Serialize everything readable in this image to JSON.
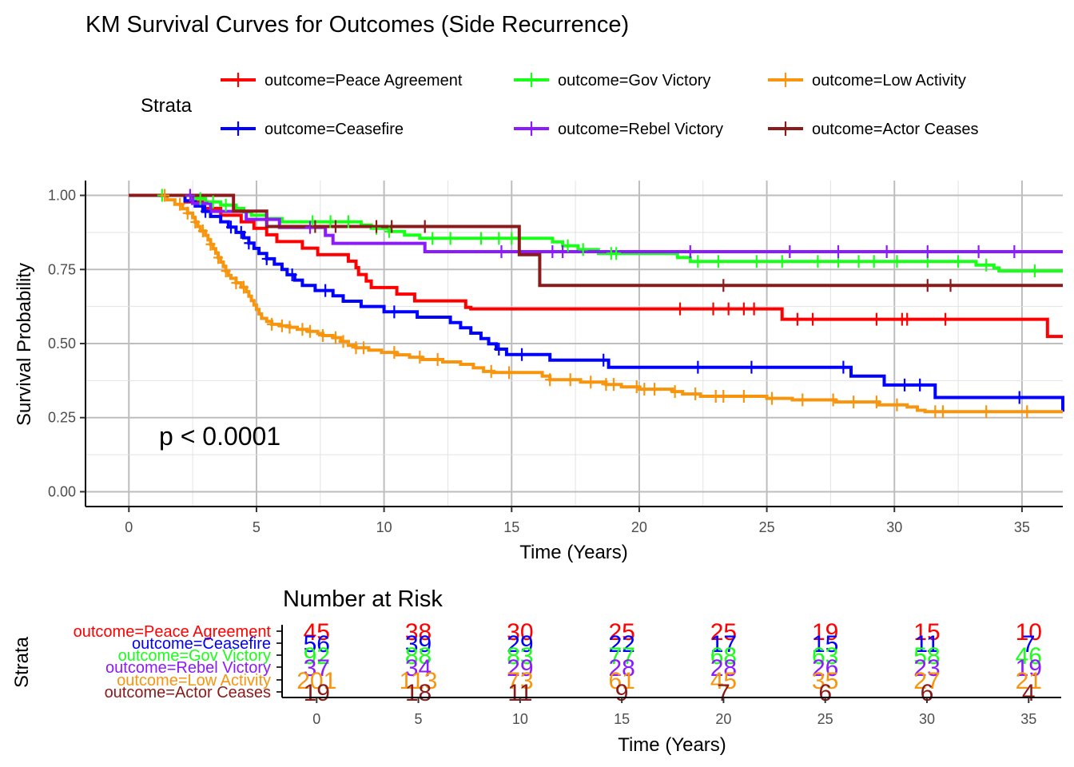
{
  "title": "KM Survival Curves for Outcomes (Side Recurrence)",
  "legend": {
    "title": "Strata",
    "placement": "top",
    "entries": [
      {
        "label": "outcome=Peace Agreement",
        "color": "#ff0000"
      },
      {
        "label": "outcome=Gov Victory",
        "color": "#1aff1a"
      },
      {
        "label": "outcome=Low Activity",
        "color": "#f7950e"
      },
      {
        "label": "outcome=Ceasefire",
        "color": "#0000ff"
      },
      {
        "label": "outcome=Rebel Victory",
        "color": "#8c1aff"
      },
      {
        "label": "outcome=Actor Ceases",
        "color": "#8b1a1a"
      }
    ]
  },
  "pvalue_text": "p < 0.0001",
  "chart_data": [
    {
      "type": "line",
      "subtype": "step",
      "title": "KM Survival Curves for Outcomes (Side Recurrence)",
      "xlabel": "Time (Years)",
      "ylabel": "Survival Probability",
      "xlim": [
        -1.7,
        36.6
      ],
      "ylim": [
        -0.05,
        1.05
      ],
      "xticks": [
        0,
        5,
        10,
        15,
        20,
        25,
        30,
        35
      ],
      "yticks": [
        0.0,
        0.25,
        0.5,
        0.75,
        1.0
      ],
      "xtick_labels": [
        "0",
        "5",
        "10",
        "15",
        "20",
        "25",
        "30",
        "35"
      ],
      "ytick_labels": [
        "0.00",
        "0.25",
        "0.50",
        "0.75",
        "1.00"
      ],
      "grid": true,
      "legend_placement": "top",
      "annotations": [
        {
          "text": "p < 0.0001",
          "x": 1.1,
          "y": 0.19
        }
      ],
      "series": [
        {
          "name": "outcome=Peace Agreement",
          "color": "#ff0000",
          "steps": [
            [
              0,
              1.0
            ],
            [
              2.2,
              0.978
            ],
            [
              2.9,
              0.956
            ],
            [
              3.6,
              0.933
            ],
            [
              4.4,
              0.911
            ],
            [
              4.9,
              0.889
            ],
            [
              5.4,
              0.867
            ],
            [
              5.8,
              0.844
            ],
            [
              6.8,
              0.822
            ],
            [
              7.4,
              0.8
            ],
            [
              8.6,
              0.778
            ],
            [
              8.9,
              0.756
            ],
            [
              9.0,
              0.733
            ],
            [
              9.3,
              0.711
            ],
            [
              9.5,
              0.689
            ],
            [
              10.5,
              0.667
            ],
            [
              11.2,
              0.644
            ],
            [
              13.2,
              0.622
            ],
            [
              13.4,
              0.617
            ],
            [
              25.6,
              0.582
            ],
            [
              36.0,
              0.524
            ]
          ],
          "censor_times": [
            21.6,
            22.9,
            23.5,
            24.1,
            24.5,
            26.2,
            26.8,
            29.3,
            30.3,
            30.5,
            32.0
          ]
        },
        {
          "name": "outcome=Ceasefire",
          "color": "#0000ff",
          "steps": [
            [
              0,
              1.0
            ],
            [
              2.2,
              0.982
            ],
            [
              2.6,
              0.964
            ],
            [
              2.9,
              0.946
            ],
            [
              3.2,
              0.929
            ],
            [
              3.6,
              0.911
            ],
            [
              3.9,
              0.893
            ],
            [
              4.2,
              0.875
            ],
            [
              4.5,
              0.857
            ],
            [
              4.7,
              0.839
            ],
            [
              4.9,
              0.821
            ],
            [
              5.1,
              0.804
            ],
            [
              5.4,
              0.786
            ],
            [
              5.7,
              0.768
            ],
            [
              6.0,
              0.75
            ],
            [
              6.2,
              0.732
            ],
            [
              6.5,
              0.714
            ],
            [
              6.8,
              0.696
            ],
            [
              7.3,
              0.679
            ],
            [
              8.0,
              0.661
            ],
            [
              8.4,
              0.643
            ],
            [
              9.1,
              0.625
            ],
            [
              10.0,
              0.607
            ],
            [
              11.3,
              0.589
            ],
            [
              12.6,
              0.571
            ],
            [
              13.0,
              0.553
            ],
            [
              13.4,
              0.535
            ],
            [
              13.8,
              0.517
            ],
            [
              14.1,
              0.499
            ],
            [
              14.4,
              0.481
            ],
            [
              14.8,
              0.463
            ],
            [
              16.5,
              0.444
            ],
            [
              18.8,
              0.42
            ],
            [
              28.3,
              0.39
            ],
            [
              29.6,
              0.36
            ],
            [
              31.6,
              0.318
            ],
            [
              36.6,
              0.27
            ]
          ],
          "censor_times": [
            3.0,
            4.0,
            4.4,
            4.7,
            5.4,
            6.4,
            7.7,
            10.4,
            14.5,
            15.4,
            18.6,
            22.3,
            24.4,
            28.0,
            30.4,
            31.0,
            34.9
          ]
        },
        {
          "name": "outcome=Gov Victory",
          "color": "#1aff1a",
          "steps": [
            [
              0,
              1.0
            ],
            [
              2.6,
              0.989
            ],
            [
              3.0,
              0.978
            ],
            [
              3.6,
              0.967
            ],
            [
              4.2,
              0.956
            ],
            [
              4.5,
              0.944
            ],
            [
              4.8,
              0.933
            ],
            [
              5.4,
              0.922
            ],
            [
              6.0,
              0.911
            ],
            [
              9.1,
              0.9
            ],
            [
              9.5,
              0.889
            ],
            [
              10.2,
              0.878
            ],
            [
              10.8,
              0.866
            ],
            [
              11.4,
              0.855
            ],
            [
              16.6,
              0.843
            ],
            [
              17.0,
              0.83
            ],
            [
              17.6,
              0.817
            ],
            [
              18.4,
              0.804
            ],
            [
              21.5,
              0.79
            ],
            [
              22.0,
              0.777
            ],
            [
              33.2,
              0.765
            ],
            [
              33.9,
              0.755
            ],
            [
              34.1,
              0.745
            ]
          ],
          "censor_times": [
            1.3,
            2.4,
            2.8,
            3.3,
            3.8,
            7.2,
            7.9,
            8.6,
            9.7,
            10.2,
            11.9,
            12.6,
            13.8,
            14.5,
            15.0,
            17.2,
            17.8,
            18.9,
            19.1,
            22.3,
            23.1,
            24.6,
            25.6,
            27.0,
            27.8,
            28.6,
            29.2,
            30.1,
            31.3,
            32.5,
            33.6,
            35.5
          ]
        },
        {
          "name": "outcome=Rebel Victory",
          "color": "#8c1aff",
          "steps": [
            [
              0,
              1.0
            ],
            [
              2.5,
              0.973
            ],
            [
              3.2,
              0.946
            ],
            [
              4.6,
              0.919
            ],
            [
              5.9,
              0.892
            ],
            [
              7.7,
              0.865
            ],
            [
              8.0,
              0.838
            ],
            [
              11.6,
              0.81
            ],
            [
              36.6,
              0.81
            ]
          ],
          "censor_times": [
            2.4,
            5.4,
            7.1,
            14.6,
            16.6,
            17.0,
            22.0,
            25.9,
            27.8,
            29.7,
            31.3,
            33.3,
            34.7
          ]
        },
        {
          "name": "outcome=Low Activity",
          "color": "#f7950e",
          "steps": [
            [
              0,
              1.0
            ],
            [
              1.5,
              0.985
            ],
            [
              1.8,
              0.97
            ],
            [
              2.1,
              0.955
            ],
            [
              2.3,
              0.94
            ],
            [
              2.5,
              0.925
            ],
            [
              2.6,
              0.91
            ],
            [
              2.7,
              0.895
            ],
            [
              2.8,
              0.88
            ],
            [
              3.0,
              0.865
            ],
            [
              3.1,
              0.85
            ],
            [
              3.2,
              0.835
            ],
            [
              3.3,
              0.82
            ],
            [
              3.4,
              0.805
            ],
            [
              3.5,
              0.79
            ],
            [
              3.6,
              0.775
            ],
            [
              3.7,
              0.76
            ],
            [
              3.8,
              0.745
            ],
            [
              3.9,
              0.73
            ],
            [
              4.0,
              0.72
            ],
            [
              4.2,
              0.705
            ],
            [
              4.4,
              0.69
            ],
            [
              4.6,
              0.675
            ],
            [
              4.7,
              0.66
            ],
            [
              4.8,
              0.645
            ],
            [
              4.9,
              0.63
            ],
            [
              5.0,
              0.615
            ],
            [
              5.1,
              0.6
            ],
            [
              5.2,
              0.585
            ],
            [
              5.4,
              0.575
            ],
            [
              5.6,
              0.565
            ],
            [
              5.9,
              0.56
            ],
            [
              6.3,
              0.555
            ],
            [
              6.6,
              0.548
            ],
            [
              7.0,
              0.541
            ],
            [
              7.4,
              0.534
            ],
            [
              7.6,
              0.527
            ],
            [
              8.0,
              0.52
            ],
            [
              8.3,
              0.507
            ],
            [
              8.6,
              0.494
            ],
            [
              8.9,
              0.486
            ],
            [
              9.4,
              0.478
            ],
            [
              9.9,
              0.47
            ],
            [
              10.5,
              0.462
            ],
            [
              11.0,
              0.454
            ],
            [
              11.5,
              0.446
            ],
            [
              12.3,
              0.438
            ],
            [
              13.0,
              0.43
            ],
            [
              13.5,
              0.418
            ],
            [
              13.9,
              0.406
            ],
            [
              14.3,
              0.402
            ],
            [
              16.2,
              0.39
            ],
            [
              16.5,
              0.378
            ],
            [
              17.7,
              0.37
            ],
            [
              18.7,
              0.362
            ],
            [
              19.3,
              0.354
            ],
            [
              20.0,
              0.346
            ],
            [
              21.3,
              0.338
            ],
            [
              21.7,
              0.33
            ],
            [
              22.4,
              0.322
            ],
            [
              25.0,
              0.315
            ],
            [
              26.0,
              0.31
            ],
            [
              27.7,
              0.303
            ],
            [
              29.4,
              0.293
            ],
            [
              30.5,
              0.286
            ],
            [
              30.9,
              0.275
            ],
            [
              31.2,
              0.27
            ],
            [
              36.6,
              0.27
            ]
          ],
          "censor_times": [
            1.4,
            2.0,
            2.3,
            2.6,
            2.9,
            3.2,
            3.5,
            3.8,
            4.2,
            4.5,
            5.6,
            6.0,
            6.3,
            6.8,
            7.1,
            7.6,
            8.1,
            8.4,
            8.9,
            9.2,
            10.4,
            11.4,
            12.1,
            14.2,
            14.9,
            16.5,
            17.3,
            18.1,
            18.7,
            19.0,
            19.9,
            20.2,
            20.6,
            21.4,
            22.2,
            23.0,
            23.3,
            24.1,
            25.2,
            26.4,
            27.6,
            28.4,
            29.3,
            30.1,
            31.6,
            31.9,
            33.6,
            35.2
          ]
        },
        {
          "name": "outcome=Actor Ceases",
          "color": "#8b1a1a",
          "steps": [
            [
              0,
              1.0
            ],
            [
              4.1,
              0.947
            ],
            [
              5.4,
              0.895
            ],
            [
              15.3,
              0.8
            ],
            [
              16.1,
              0.696
            ],
            [
              36.6,
              0.696
            ]
          ],
          "censor_times": [
            7.3,
            8.1,
            9.7,
            10.3,
            11.6,
            23.3,
            31.3,
            32.2
          ]
        }
      ]
    },
    {
      "type": "table",
      "title": "Number at Risk",
      "xlabel": "Time (Years)",
      "ylabel": "Strata",
      "xticks": [
        0,
        5,
        10,
        15,
        20,
        25,
        30,
        35
      ],
      "xtick_labels": [
        "0",
        "5",
        "10",
        "15",
        "20",
        "25",
        "30",
        "35"
      ],
      "rows": [
        {
          "name": "outcome=Peace Agreement",
          "color": "#ff0000",
          "values": [
            45,
            38,
            30,
            25,
            25,
            19,
            15,
            10
          ]
        },
        {
          "name": "outcome=Ceasefire",
          "color": "#0000ff",
          "values": [
            56,
            39,
            29,
            22,
            17,
            15,
            11,
            7
          ]
        },
        {
          "name": "outcome=Gov Victory",
          "color": "#1aff1a",
          "values": [
            92,
            88,
            83,
            77,
            68,
            63,
            58,
            46
          ]
        },
        {
          "name": "outcome=Rebel Victory",
          "color": "#8c1aff",
          "values": [
            37,
            34,
            29,
            28,
            28,
            26,
            23,
            19
          ]
        },
        {
          "name": "outcome=Low Activity",
          "color": "#f7950e",
          "values": [
            201,
            113,
            73,
            61,
            45,
            35,
            27,
            21
          ]
        },
        {
          "name": "outcome=Actor Ceases",
          "color": "#8b1a1a",
          "values": [
            19,
            18,
            11,
            9,
            7,
            6,
            6,
            4
          ]
        }
      ]
    }
  ]
}
